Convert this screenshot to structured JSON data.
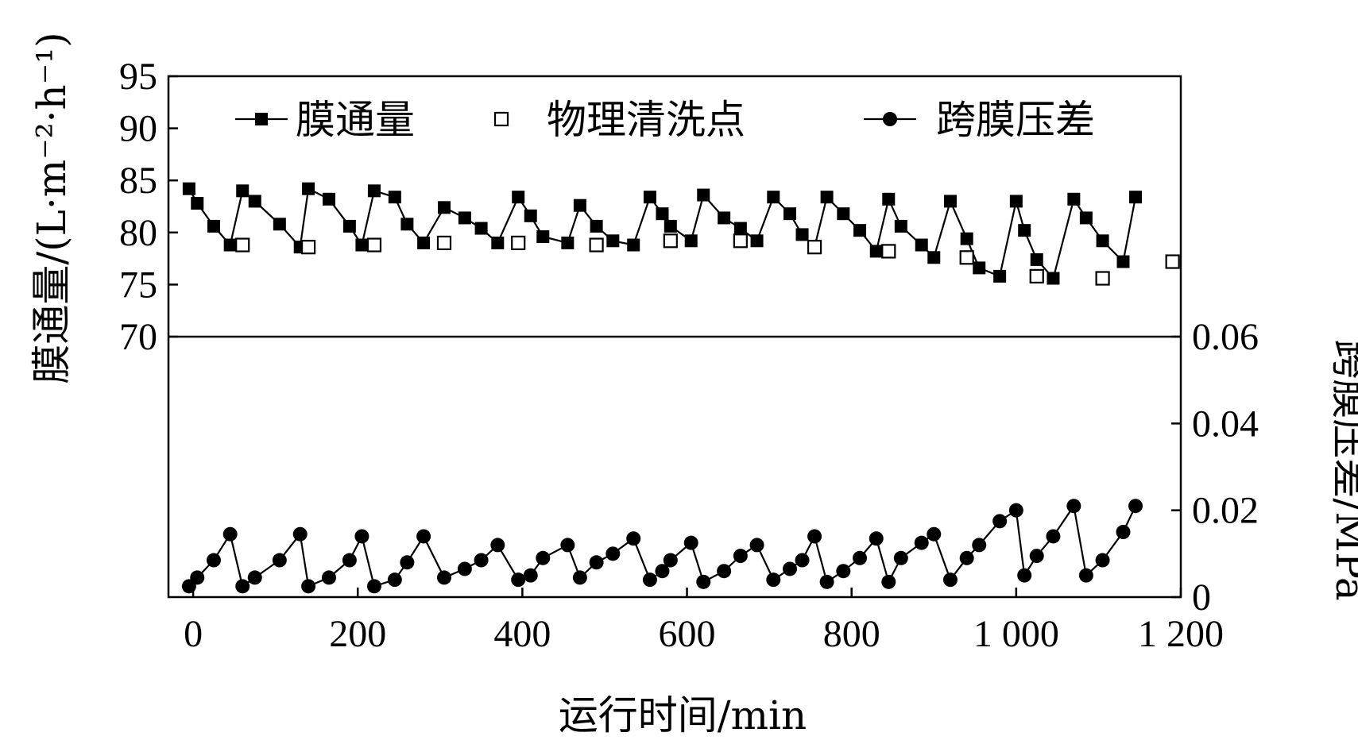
{
  "chart_data": {
    "type": "line",
    "x_axis": {
      "label": "运行时间/min",
      "range": [
        -30,
        1200
      ],
      "ticks": [
        0,
        200,
        400,
        600,
        800,
        1000,
        1200
      ],
      "tick_labels": [
        "0",
        "200",
        "400",
        "600",
        "800",
        "1 000",
        "1 200"
      ]
    },
    "y_axis_left": {
      "label": "膜通量/(L·m⁻²·h⁻¹)",
      "range": [
        70,
        95
      ],
      "ticks": [
        70,
        75,
        80,
        85,
        90,
        95
      ],
      "tick_labels": [
        "70",
        "75",
        "80",
        "85",
        "90",
        "95"
      ]
    },
    "y_axis_right": {
      "label": "跨膜压差/MPa",
      "range": [
        0,
        0.06
      ],
      "ticks": [
        0,
        0.02,
        0.04,
        0.06
      ],
      "tick_labels": [
        "0",
        "0.02",
        "0.04",
        "0.06"
      ]
    },
    "legend": {
      "placement": "top",
      "entries": [
        "膜通量",
        "物理清洗点",
        "跨膜压差"
      ]
    },
    "series": [
      {
        "name": "膜通量",
        "axis": "left",
        "marker": "filled-square",
        "color": "#000000",
        "x": [
          -5,
          5,
          25,
          45,
          60,
          75,
          105,
          130,
          140,
          165,
          190,
          205,
          220,
          245,
          260,
          280,
          305,
          330,
          350,
          370,
          395,
          410,
          425,
          455,
          470,
          490,
          510,
          535,
          555,
          570,
          580,
          605,
          620,
          645,
          665,
          685,
          705,
          725,
          740,
          755,
          770,
          790,
          810,
          830,
          845,
          860,
          885,
          900,
          920,
          940,
          955,
          980,
          1000,
          1010,
          1025,
          1045,
          1070,
          1085,
          1105,
          1130,
          1145
        ],
        "y": [
          84.2,
          82.8,
          80.6,
          78.8,
          84.0,
          83.0,
          80.8,
          78.6,
          84.2,
          83.2,
          80.6,
          78.8,
          84.0,
          83.4,
          80.8,
          79.0,
          82.4,
          81.4,
          80.4,
          79.0,
          83.4,
          81.6,
          79.6,
          79.0,
          82.6,
          80.6,
          79.2,
          78.8,
          83.4,
          81.8,
          80.6,
          79.2,
          83.6,
          81.4,
          80.4,
          79.2,
          83.4,
          81.8,
          79.8,
          78.6,
          83.4,
          81.8,
          80.2,
          78.2,
          83.2,
          80.6,
          78.8,
          77.6,
          83.0,
          79.4,
          76.6,
          75.8,
          83.0,
          80.2,
          77.4,
          75.6,
          83.2,
          81.4,
          79.2,
          77.2,
          83.4
        ]
      },
      {
        "name": "物理清洗点",
        "axis": "left",
        "marker": "open-square",
        "color": "#000000",
        "x": [
          60,
          140,
          220,
          305,
          395,
          490,
          580,
          665,
          755,
          845,
          940,
          1025,
          1105,
          1190
        ],
        "y": [
          78.8,
          78.6,
          78.8,
          79.0,
          79.0,
          78.8,
          79.2,
          79.2,
          78.6,
          78.2,
          77.6,
          75.8,
          75.6,
          77.2
        ]
      },
      {
        "name": "跨膜压差",
        "axis": "right",
        "marker": "filled-circle",
        "color": "#000000",
        "x": [
          -5,
          5,
          25,
          45,
          60,
          75,
          105,
          130,
          140,
          165,
          190,
          205,
          220,
          245,
          260,
          280,
          305,
          330,
          350,
          370,
          395,
          410,
          425,
          455,
          470,
          490,
          510,
          535,
          555,
          570,
          580,
          605,
          620,
          645,
          665,
          685,
          705,
          725,
          740,
          755,
          770,
          790,
          810,
          830,
          845,
          860,
          885,
          900,
          920,
          940,
          955,
          980,
          1000,
          1010,
          1025,
          1045,
          1070,
          1085,
          1105,
          1130,
          1145
        ],
        "y": [
          0.0025,
          0.0045,
          0.0085,
          0.0145,
          0.0025,
          0.0045,
          0.0085,
          0.0145,
          0.0025,
          0.0045,
          0.0085,
          0.014,
          0.0025,
          0.004,
          0.008,
          0.014,
          0.0045,
          0.0065,
          0.0085,
          0.012,
          0.004,
          0.005,
          0.009,
          0.012,
          0.0045,
          0.008,
          0.01,
          0.0135,
          0.004,
          0.006,
          0.0085,
          0.0125,
          0.0035,
          0.006,
          0.0095,
          0.012,
          0.004,
          0.0065,
          0.0085,
          0.014,
          0.0035,
          0.006,
          0.009,
          0.0135,
          0.0035,
          0.009,
          0.0125,
          0.0145,
          0.004,
          0.009,
          0.012,
          0.0175,
          0.02,
          0.005,
          0.0095,
          0.014,
          0.021,
          0.005,
          0.0085,
          0.015,
          0.021
        ]
      }
    ]
  }
}
